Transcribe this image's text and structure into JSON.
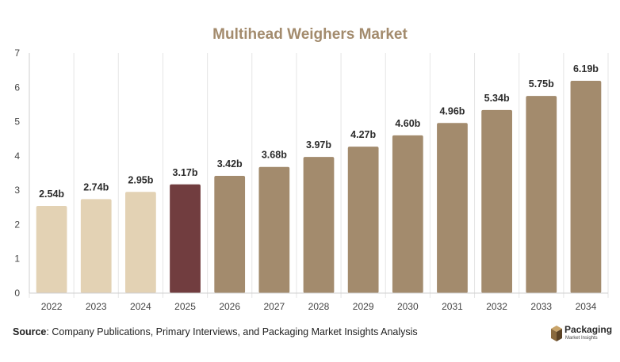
{
  "source": {
    "label": "Source",
    "text": ": Company Publications, Primary Interviews, and Packaging Market Insights Analysis"
  },
  "brand": {
    "name": "Packaging",
    "tagline": "Market Insights"
  },
  "colors": {
    "historical": "#e3d2b4",
    "current": "#713d3f",
    "forecast": "#a38b6d",
    "title": "#a38b6d",
    "axis_text": "#444444",
    "grid": "#e6e6e6"
  },
  "chart_data": {
    "type": "bar",
    "title": "Multihead Weighers Market",
    "xlabel": "",
    "ylabel": "",
    "ylim": [
      0,
      7
    ],
    "yticks": [
      0,
      1,
      2,
      3,
      4,
      5,
      6,
      7
    ],
    "grid": "vertical",
    "legend": "none",
    "categories": [
      "2022",
      "2023",
      "2024",
      "2025",
      "2026",
      "2027",
      "2028",
      "2029",
      "2030",
      "2031",
      "2032",
      "2033",
      "2034"
    ],
    "values": [
      2.54,
      2.74,
      2.95,
      3.17,
      3.42,
      3.68,
      3.97,
      4.27,
      4.6,
      4.96,
      5.34,
      5.75,
      6.19
    ],
    "labels": [
      "2.54b",
      "2.74b",
      "2.95b",
      "3.17b",
      "3.42b",
      "3.68b",
      "3.97b",
      "4.27b",
      "4.60b",
      "4.96b",
      "5.34b",
      "5.75b",
      "6.19b"
    ],
    "bar_groups": [
      "historical",
      "historical",
      "historical",
      "current",
      "forecast",
      "forecast",
      "forecast",
      "forecast",
      "forecast",
      "forecast",
      "forecast",
      "forecast",
      "forecast"
    ]
  }
}
